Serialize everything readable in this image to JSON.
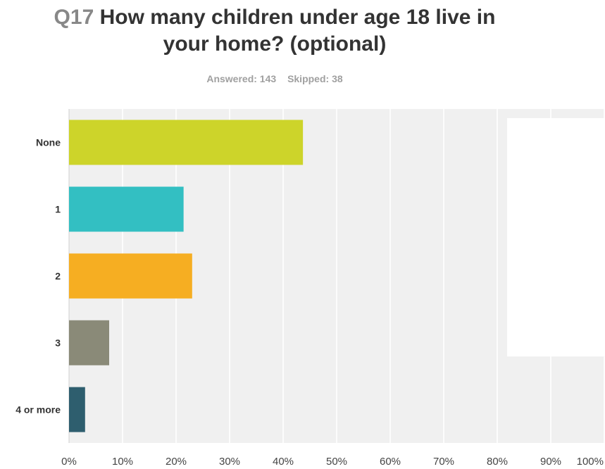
{
  "question": {
    "number": "Q17",
    "text_line1": "How many children under age 18 live in",
    "text_line2": "your home? (optional)"
  },
  "stats": {
    "answered": "Answered: 143",
    "skipped": "Skipped: 38"
  },
  "chart_data": {
    "type": "bar",
    "orientation": "horizontal",
    "categories": [
      "None",
      "1",
      "2",
      "3",
      "4 or more"
    ],
    "values": [
      43.7,
      21.4,
      23.0,
      7.5,
      3.0
    ],
    "unit": "%",
    "xlim": [
      0,
      100
    ],
    "xticks": [
      "0%",
      "10%",
      "20%",
      "30%",
      "40%",
      "50%",
      "60%",
      "70%",
      "80%",
      "90%",
      "100%"
    ],
    "grid": true,
    "colors": [
      "#cdd42a",
      "#33bfc2",
      "#f6ae22",
      "#8a8a78",
      "#2e5e6e"
    ],
    "plot_background": "#f0f0f0",
    "grid_color": "#ffffff"
  }
}
